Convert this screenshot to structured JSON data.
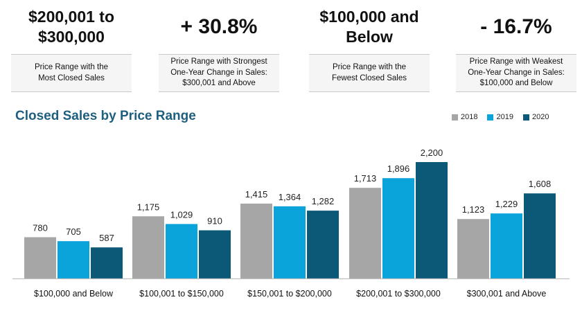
{
  "kpis": [
    {
      "big": "$200,001 to\n$300,000",
      "desc": "Price Range with the\nMost Closed Sales"
    },
    {
      "big": "+ 30.8%",
      "desc": "Price Range with Strongest\nOne-Year Change in Sales:\n$300,001 and Above"
    },
    {
      "big": "$100,000 and\nBelow",
      "desc": "Price Range with the\nFewest Closed Sales"
    },
    {
      "big": "- 16.7%",
      "desc": "Price Range with Weakest\nOne-Year Change in Sales:\n$100,000 and Below"
    }
  ],
  "chart_data": {
    "type": "bar",
    "title": "Closed Sales by Price Range",
    "categories": [
      "$100,000 and Below",
      "$100,001 to $150,000",
      "$150,001 to $200,000",
      "$200,001 to $300,000",
      "$300,001 and Above"
    ],
    "series": [
      {
        "name": "2018",
        "color": "#a6a6a6",
        "values": [
          780,
          1175,
          1415,
          1713,
          1123
        ]
      },
      {
        "name": "2019",
        "color": "#0aa3da",
        "values": [
          705,
          1029,
          1364,
          1896,
          1229
        ]
      },
      {
        "name": "2020",
        "color": "#0c5877",
        "values": [
          587,
          910,
          1282,
          2200,
          1608
        ]
      }
    ],
    "data_labels": [
      [
        "780",
        "1,175",
        "1,415",
        "1,713",
        "1,123"
      ],
      [
        "705",
        "1,029",
        "1,364",
        "1,896",
        "1,229"
      ],
      [
        "587",
        "910",
        "1,282",
        "2,200",
        "1,608"
      ]
    ],
    "legend_position": "top-right",
    "grid": false
  }
}
